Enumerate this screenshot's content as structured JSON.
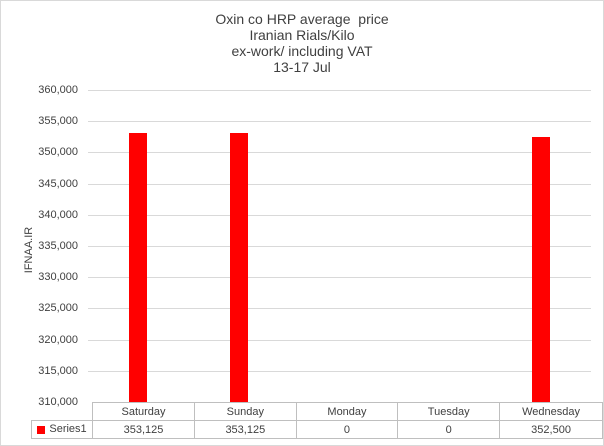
{
  "chart_data": {
    "type": "bar",
    "title_lines": [
      "Oxin co HRP average  price",
      "Iranian Rials/Kilo",
      "ex-work/ including VAT",
      "13-17 Jul"
    ],
    "ylabel": "IFNAA.IR",
    "categories": [
      "Saturday",
      "Sunday",
      "Monday",
      "Tuesday",
      "Wednesday"
    ],
    "series": [
      {
        "name": "Series1",
        "values": [
          353125,
          353125,
          0,
          0,
          352500
        ],
        "color": "#ff0000"
      }
    ],
    "table_values": [
      "353,125",
      "353,125",
      "0",
      "0",
      "352,500"
    ],
    "ylim": [
      310000,
      360000
    ],
    "ytick_labels": [
      "360,000",
      "355,000",
      "350,000",
      "345,000",
      "340,000",
      "335,000",
      "330,000",
      "325,000",
      "320,000",
      "315,000",
      "310,000"
    ],
    "grid": true,
    "legend_position": "bottom-table-row"
  },
  "colors": {
    "bar": "#ff0000",
    "gridline": "#d9d9d9",
    "table_border": "#bfbfbf",
    "text": "#404040",
    "chart_border": "#d9d9d9"
  }
}
